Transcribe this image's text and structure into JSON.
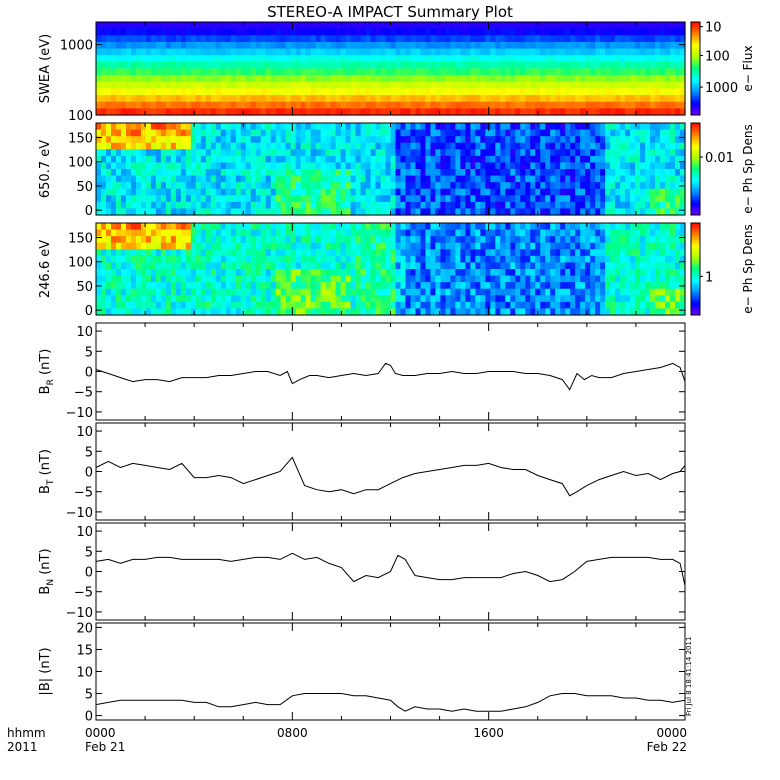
{
  "title": "STEREO-A IMPACT Summary Plot",
  "stamp": "Fri Jul  8 18:41:14 2011",
  "x_axis": {
    "left_label_line1": "hhmm",
    "left_label_line2": "2011",
    "ticks": [
      {
        "hours": 0,
        "label": "0000",
        "date": "Feb 21"
      },
      {
        "hours": 8,
        "label": "0800",
        "date": ""
      },
      {
        "hours": 16,
        "label": "1600",
        "date": ""
      },
      {
        "hours": 24,
        "label": "0000",
        "date": "Feb 22"
      }
    ]
  },
  "colors": {
    "spectrogram": [
      "#6a00ff",
      "#0000ff",
      "#0090ff",
      "#00ffff",
      "#00ff80",
      "#b0ff00",
      "#ffff00",
      "#ff8000",
      "#ff0000"
    ],
    "line": "#000000"
  },
  "chart_data": [
    {
      "type": "heatmap",
      "name": "swea",
      "ylabel": "SWEA (eV)",
      "yscale": "log",
      "ylim": [
        100,
        2100
      ],
      "yticks": [
        {
          "v": 100,
          "label": "100"
        },
        {
          "v": 1000,
          "label": "1000"
        }
      ],
      "xlim": [
        0,
        24
      ],
      "cbar_label": "e− Flux",
      "cbar_scale": "log",
      "cbar_ticks": [
        {
          "v": 10,
          "label": "10"
        },
        {
          "v": 100,
          "label": "100"
        },
        {
          "v": 1000,
          "label": "1000"
        }
      ]
    },
    {
      "type": "heatmap",
      "name": "pad650",
      "ylabel": "650.7 eV",
      "ylim": [
        -10,
        180
      ],
      "yticks": [
        {
          "v": 0,
          "label": "0"
        },
        {
          "v": 50,
          "label": "50"
        },
        {
          "v": 100,
          "label": "100"
        },
        {
          "v": 150,
          "label": "150"
        }
      ],
      "xlim": [
        0,
        24
      ],
      "cbar_label": "e− Ph Sp Dens",
      "cbar_scale": "log",
      "cbar_ticks": [
        {
          "v": 0.01,
          "label": "0.01"
        }
      ]
    },
    {
      "type": "heatmap",
      "name": "pad246",
      "ylabel": "246.6 eV",
      "ylim": [
        -10,
        180
      ],
      "yticks": [
        {
          "v": 0,
          "label": "0"
        },
        {
          "v": 50,
          "label": "50"
        },
        {
          "v": 100,
          "label": "100"
        },
        {
          "v": 150,
          "label": "150"
        }
      ],
      "xlim": [
        0,
        24
      ],
      "cbar_label": "e− Ph Sp Dens",
      "cbar_scale": "log",
      "cbar_ticks": [
        {
          "v": 1,
          "label": "1"
        }
      ]
    },
    {
      "type": "line",
      "name": "br",
      "ylabel": "B",
      "ylabel_sub": "R",
      "ylabel_unit": "(nT)",
      "ylim": [
        -12,
        12
      ],
      "yticks": [
        {
          "v": -10,
          "label": "−10"
        },
        {
          "v": -5,
          "label": "−5"
        },
        {
          "v": 0,
          "label": "0"
        },
        {
          "v": 5,
          "label": "5"
        },
        {
          "v": 10,
          "label": "10"
        }
      ],
      "xlim": [
        0,
        24
      ],
      "x": [
        0,
        0.5,
        1,
        1.5,
        2,
        2.5,
        3,
        3.5,
        4,
        4.5,
        5,
        5.5,
        6,
        6.5,
        7,
        7.5,
        7.8,
        8,
        8.3,
        8.7,
        9,
        9.5,
        10,
        10.5,
        11,
        11.5,
        11.8,
        12,
        12.2,
        12.5,
        13,
        13.5,
        14,
        14.5,
        15,
        15.5,
        16,
        16.5,
        17,
        17.5,
        18,
        18.5,
        19,
        19.3,
        19.6,
        19.9,
        20.2,
        20.5,
        21,
        21.5,
        22,
        22.5,
        23,
        23.5,
        23.8,
        24
      ],
      "y": [
        0.5,
        -0.5,
        -1.5,
        -2.5,
        -2.0,
        -2.0,
        -2.5,
        -1.5,
        -1.5,
        -1.5,
        -1.0,
        -1.0,
        -0.5,
        0.0,
        0.0,
        -1.0,
        0.0,
        -3.0,
        -2.0,
        -1.0,
        -1.0,
        -1.5,
        -1.0,
        -0.5,
        -1.0,
        -0.5,
        2.0,
        1.5,
        -0.5,
        -1.0,
        -1.0,
        -0.5,
        -0.5,
        0.0,
        -0.5,
        -0.5,
        0.0,
        0.0,
        0.0,
        -0.5,
        -0.5,
        -1.0,
        -2.0,
        -4.5,
        -0.5,
        -2.0,
        -1.0,
        -1.5,
        -1.5,
        -0.5,
        0.0,
        0.5,
        1.0,
        2.0,
        1.0,
        -2.5
      ]
    },
    {
      "type": "line",
      "name": "bt",
      "ylabel": "B",
      "ylabel_sub": "T",
      "ylabel_unit": "(nT)",
      "ylim": [
        -12,
        12
      ],
      "yticks": [
        {
          "v": -10,
          "label": "−10"
        },
        {
          "v": -5,
          "label": "−5"
        },
        {
          "v": 0,
          "label": "0"
        },
        {
          "v": 5,
          "label": "5"
        },
        {
          "v": 10,
          "label": "10"
        }
      ],
      "xlim": [
        0,
        24
      ],
      "x": [
        0,
        0.5,
        1,
        1.5,
        2,
        2.5,
        3,
        3.5,
        4,
        4.5,
        5,
        5.5,
        6,
        6.5,
        7,
        7.5,
        8,
        8.5,
        9,
        9.5,
        10,
        10.5,
        11,
        11.5,
        12,
        12.5,
        13,
        13.5,
        14,
        14.5,
        15,
        15.5,
        16,
        16.5,
        17,
        17.5,
        18,
        18.5,
        19,
        19.3,
        19.6,
        20,
        20.5,
        21,
        21.5,
        22,
        22.5,
        23,
        23.5,
        23.8,
        24
      ],
      "y": [
        1.0,
        2.5,
        1.0,
        2.0,
        1.5,
        1.0,
        0.5,
        2.0,
        -1.5,
        -1.5,
        -1.0,
        -1.5,
        -3.0,
        -2.0,
        -1.0,
        0.0,
        3.5,
        -3.5,
        -4.5,
        -5.0,
        -4.5,
        -5.5,
        -4.5,
        -4.5,
        -3.0,
        -1.5,
        -0.5,
        0.0,
        0.5,
        1.0,
        1.5,
        1.5,
        2.0,
        1.0,
        0.5,
        0.5,
        -1.0,
        -2.0,
        -3.0,
        -6.0,
        -5.0,
        -3.5,
        -2.0,
        -1.0,
        0.0,
        -1.0,
        -0.5,
        -2.0,
        -0.5,
        0.0,
        1.5
      ]
    },
    {
      "type": "line",
      "name": "bn",
      "ylabel": "B",
      "ylabel_sub": "N",
      "ylabel_unit": "(nT)",
      "ylim": [
        -12,
        12
      ],
      "yticks": [
        {
          "v": -10,
          "label": "−10"
        },
        {
          "v": -5,
          "label": "−5"
        },
        {
          "v": 0,
          "label": "0"
        },
        {
          "v": 5,
          "label": "5"
        },
        {
          "v": 10,
          "label": "10"
        }
      ],
      "xlim": [
        0,
        24
      ],
      "x": [
        0,
        0.5,
        1,
        1.5,
        2,
        2.5,
        3,
        3.5,
        4,
        4.5,
        5,
        5.5,
        6,
        6.5,
        7,
        7.5,
        8,
        8.5,
        9,
        9.5,
        10,
        10.5,
        11,
        11.5,
        12,
        12.3,
        12.6,
        13,
        13.5,
        14,
        14.5,
        15,
        15.5,
        16,
        16.5,
        17,
        17.5,
        18,
        18.5,
        19,
        19.5,
        20,
        20.5,
        21,
        21.5,
        22,
        22.5,
        23,
        23.5,
        23.8,
        24
      ],
      "y": [
        2.5,
        3.0,
        2.0,
        3.0,
        3.0,
        3.5,
        3.5,
        3.0,
        3.0,
        3.0,
        3.0,
        2.5,
        3.0,
        3.5,
        3.5,
        3.0,
        4.5,
        3.0,
        3.5,
        2.0,
        1.0,
        -2.5,
        -1.0,
        -1.5,
        0.0,
        4.0,
        3.0,
        -1.0,
        -1.5,
        -2.0,
        -2.0,
        -1.5,
        -1.5,
        -1.5,
        -1.5,
        -0.5,
        0.0,
        -1.0,
        -2.5,
        -2.0,
        0.0,
        2.5,
        3.0,
        3.5,
        3.5,
        3.5,
        3.5,
        3.0,
        3.0,
        2.0,
        -3.5
      ]
    },
    {
      "type": "line",
      "name": "bmag",
      "ylabel": "|B| (nT)",
      "ylim": [
        -1,
        21
      ],
      "yticks": [
        {
          "v": 0,
          "label": "0"
        },
        {
          "v": 5,
          "label": "5"
        },
        {
          "v": 10,
          "label": "10"
        },
        {
          "v": 15,
          "label": "15"
        },
        {
          "v": 20,
          "label": "20"
        }
      ],
      "xlim": [
        0,
        24
      ],
      "x": [
        0,
        0.5,
        1,
        1.5,
        2,
        2.5,
        3,
        3.5,
        4,
        4.5,
        5,
        5.5,
        6,
        6.5,
        7,
        7.5,
        8,
        8.5,
        9,
        9.5,
        10,
        10.5,
        11,
        11.5,
        12,
        12.3,
        12.6,
        13,
        13.5,
        14,
        14.5,
        15,
        15.5,
        16,
        16.5,
        17,
        17.5,
        18,
        18.5,
        19,
        19.5,
        20,
        20.5,
        21,
        21.5,
        22,
        22.5,
        23,
        23.5,
        24
      ],
      "y": [
        2.5,
        3.0,
        3.5,
        3.5,
        3.5,
        3.5,
        3.5,
        3.5,
        3.0,
        3.0,
        2.0,
        2.0,
        2.5,
        3.0,
        2.5,
        2.5,
        4.5,
        5.0,
        5.0,
        5.0,
        5.0,
        4.5,
        4.5,
        4.0,
        3.5,
        2.0,
        1.0,
        2.0,
        1.5,
        1.5,
        1.0,
        1.5,
        1.0,
        1.0,
        1.0,
        1.5,
        2.0,
        3.0,
        4.5,
        5.0,
        5.0,
        4.5,
        4.5,
        4.5,
        4.0,
        4.0,
        3.5,
        3.5,
        3.0,
        3.5
      ]
    }
  ]
}
